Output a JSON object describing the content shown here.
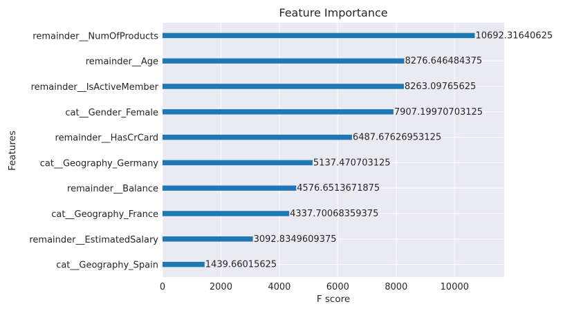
{
  "chart_data": {
    "type": "bar",
    "orientation": "horizontal",
    "title": "Feature Importance",
    "xlabel": "F score",
    "ylabel": "Features",
    "xlim": [
      0,
      11700
    ],
    "xticks": [
      0,
      2000,
      4000,
      6000,
      8000,
      10000
    ],
    "grid": true,
    "categories": [
      "remainder__NumOfProducts",
      "remainder__Age",
      "remainder__IsActiveMember",
      "cat__Gender_Female",
      "remainder__HasCrCard",
      "cat__Geography_Germany",
      "remainder__Balance",
      "cat__Geography_France",
      "remainder__EstimatedSalary",
      "cat__Geography_Spain"
    ],
    "values": [
      10692.31640625,
      8276.646484375,
      8263.09765625,
      7907.19970703125,
      6487.67626953125,
      5137.470703125,
      4576.6513671875,
      4337.70068359375,
      3092.8349609375,
      1439.66015625
    ],
    "value_labels": [
      "10692.31640625",
      "8276.646484375",
      "8263.09765625",
      "7907.19970703125",
      "6487.67626953125",
      "5137.470703125",
      "4576.6513671875",
      "4337.70068359375",
      "3092.8349609375",
      "1439.66015625"
    ],
    "colors": {
      "bar": "#1f77b4",
      "plot_background": "#eaeaf2",
      "grid": "#ffffff",
      "text": "#262626"
    }
  }
}
